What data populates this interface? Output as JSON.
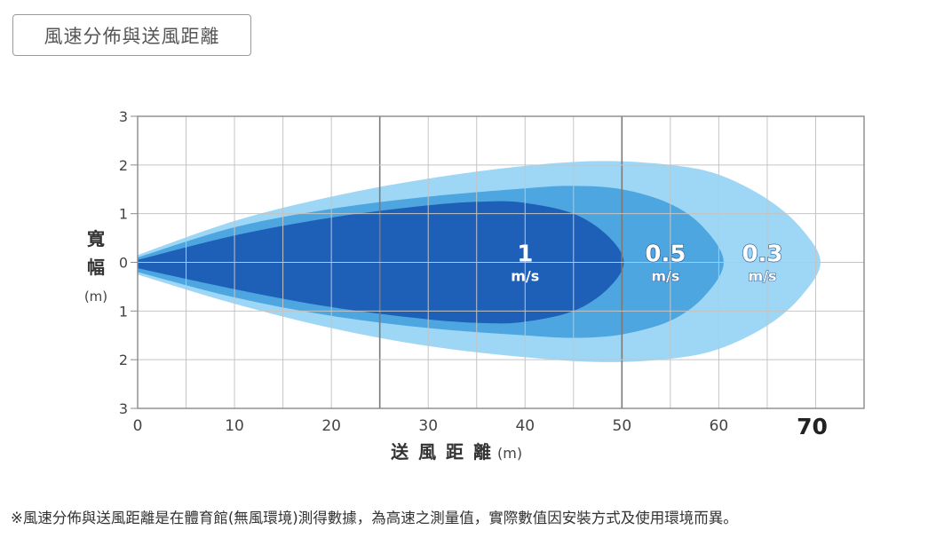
{
  "title": "風速分佈與送風距離",
  "footnote": "※風速分佈與送風距離是在體育館(無風環境)測得數據，為高速之測量值，實際數值因安裝方式及使用環境而異。",
  "chart_data": {
    "type": "area",
    "xlabel": "送 風 距 離",
    "xunit": "(m)",
    "ylabel_chars": [
      "寬",
      "幅"
    ],
    "yunit": "(m)",
    "xlim": [
      0,
      75
    ],
    "ylim": [
      -3,
      3
    ],
    "x_ticks": [
      "0",
      "10",
      "20",
      "30",
      "40",
      "50",
      "60",
      "70"
    ],
    "y_ticks": [
      "3",
      "2",
      "1",
      "0",
      "1",
      "2",
      "3"
    ],
    "grid": true,
    "zones": [
      {
        "label_value": "0.3",
        "label_unit": "m/s",
        "color": "#9dd7f5",
        "reach": 70.5,
        "upper": [
          [
            0,
            0.15
          ],
          [
            10,
            0.85
          ],
          [
            20,
            1.35
          ],
          [
            30,
            1.72
          ],
          [
            40,
            1.98
          ],
          [
            48,
            2.08
          ],
          [
            55,
            2.0
          ],
          [
            60,
            1.8
          ],
          [
            65,
            1.3
          ],
          [
            68.5,
            0.7
          ],
          [
            70.5,
            0
          ]
        ],
        "lower": [
          [
            0,
            -0.25
          ],
          [
            10,
            -0.85
          ],
          [
            20,
            -1.35
          ],
          [
            30,
            -1.72
          ],
          [
            40,
            -1.95
          ],
          [
            48,
            -2.05
          ],
          [
            55,
            -1.98
          ],
          [
            60,
            -1.78
          ],
          [
            65,
            -1.3
          ],
          [
            68.5,
            -0.7
          ],
          [
            70.5,
            0
          ]
        ]
      },
      {
        "label_value": "0.5",
        "label_unit": "m/s",
        "color": "#4da6e0",
        "reach": 60.5,
        "upper": [
          [
            0,
            0.1
          ],
          [
            10,
            0.72
          ],
          [
            20,
            1.1
          ],
          [
            30,
            1.35
          ],
          [
            40,
            1.52
          ],
          [
            45,
            1.57
          ],
          [
            50,
            1.5
          ],
          [
            55,
            1.2
          ],
          [
            58.5,
            0.7
          ],
          [
            60.5,
            0
          ]
        ],
        "lower": [
          [
            0,
            -0.2
          ],
          [
            10,
            -0.72
          ],
          [
            20,
            -1.1
          ],
          [
            30,
            -1.35
          ],
          [
            40,
            -1.5
          ],
          [
            45,
            -1.55
          ],
          [
            50,
            -1.48
          ],
          [
            55,
            -1.2
          ],
          [
            58.5,
            -0.7
          ],
          [
            60.5,
            0
          ]
        ]
      },
      {
        "label_value": "1",
        "label_unit": "m/s",
        "color": "#1e5fb8",
        "reach": 50.2,
        "upper": [
          [
            0,
            0.05
          ],
          [
            10,
            0.55
          ],
          [
            20,
            0.92
          ],
          [
            30,
            1.17
          ],
          [
            36,
            1.25
          ],
          [
            40,
            1.22
          ],
          [
            45,
            1.0
          ],
          [
            48.5,
            0.55
          ],
          [
            50.2,
            0
          ]
        ],
        "lower": [
          [
            0,
            -0.12
          ],
          [
            10,
            -0.55
          ],
          [
            20,
            -0.92
          ],
          [
            30,
            -1.17
          ],
          [
            36,
            -1.25
          ],
          [
            40,
            -1.22
          ],
          [
            45,
            -1.0
          ],
          [
            48.5,
            -0.55
          ],
          [
            50.2,
            0
          ]
        ]
      }
    ]
  }
}
